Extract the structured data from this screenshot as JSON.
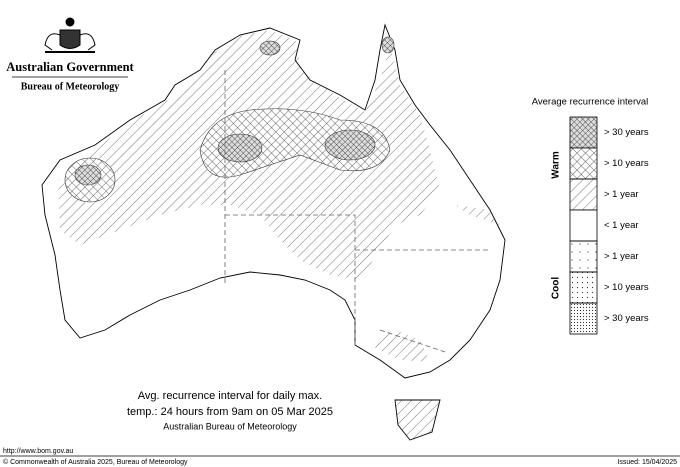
{
  "header": {
    "government": "Australian Government",
    "bureau": "Bureau of Meteorology"
  },
  "legend": {
    "title": "Average recurrence interval",
    "warm": "Warm",
    "cool": "Cool",
    "entries": [
      "> 30 years",
      "> 10 years",
      "> 1 year",
      "< 1 year",
      "> 1 year",
      "> 10 years",
      "> 30 years"
    ]
  },
  "caption": {
    "line1": "Avg. recurrence interval for daily max.",
    "line2": "temp.: 24 hours from 9am on 05 Mar 2025",
    "line3": "Australian Bureau of Meteorology"
  },
  "footer": {
    "url": "http://www.bom.gov.au",
    "copyright": "© Commonwealth of Australia 2025, Bureau of Meteorology",
    "issued": "Issued: 15/04/2025"
  }
}
